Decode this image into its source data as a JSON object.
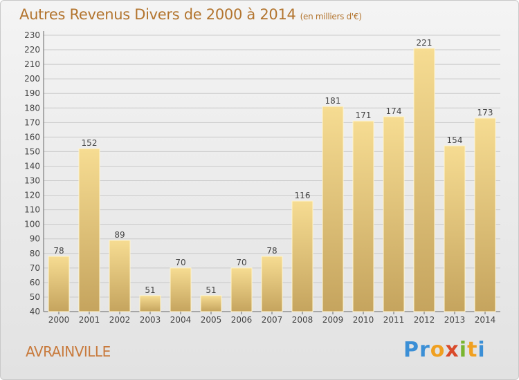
{
  "chart_data": {
    "type": "bar",
    "title": "Autres Revenus Divers de 2000 à 2014",
    "subtitle": "(en milliers d'€)",
    "categories": [
      "2000",
      "2001",
      "2002",
      "2003",
      "2004",
      "2005",
      "2006",
      "2007",
      "2008",
      "2009",
      "2010",
      "2011",
      "2012",
      "2013",
      "2014"
    ],
    "values": [
      78,
      152,
      89,
      51,
      70,
      51,
      70,
      78,
      116,
      181,
      171,
      174,
      221,
      154,
      173
    ],
    "ylim": [
      40,
      230
    ],
    "yticks": [
      40,
      50,
      60,
      70,
      80,
      90,
      100,
      110,
      120,
      130,
      140,
      150,
      160,
      170,
      180,
      190,
      200,
      210,
      220,
      230
    ],
    "xlabel": "",
    "ylabel": "",
    "grid": true,
    "bar_color": "#e8c87a"
  },
  "footer": {
    "commune": "AVRAINVILLE",
    "logo_letters": [
      {
        "ch": "P",
        "color": "#3b8fd6"
      },
      {
        "ch": "r",
        "color": "#3b8fd6"
      },
      {
        "ch": "o",
        "color": "#f0a020"
      },
      {
        "ch": "x",
        "color": "#d94a2a"
      },
      {
        "ch": "i",
        "color": "#79b52f"
      },
      {
        "ch": "t",
        "color": "#f0a020"
      },
      {
        "ch": "i",
        "color": "#3b8fd6"
      }
    ]
  }
}
